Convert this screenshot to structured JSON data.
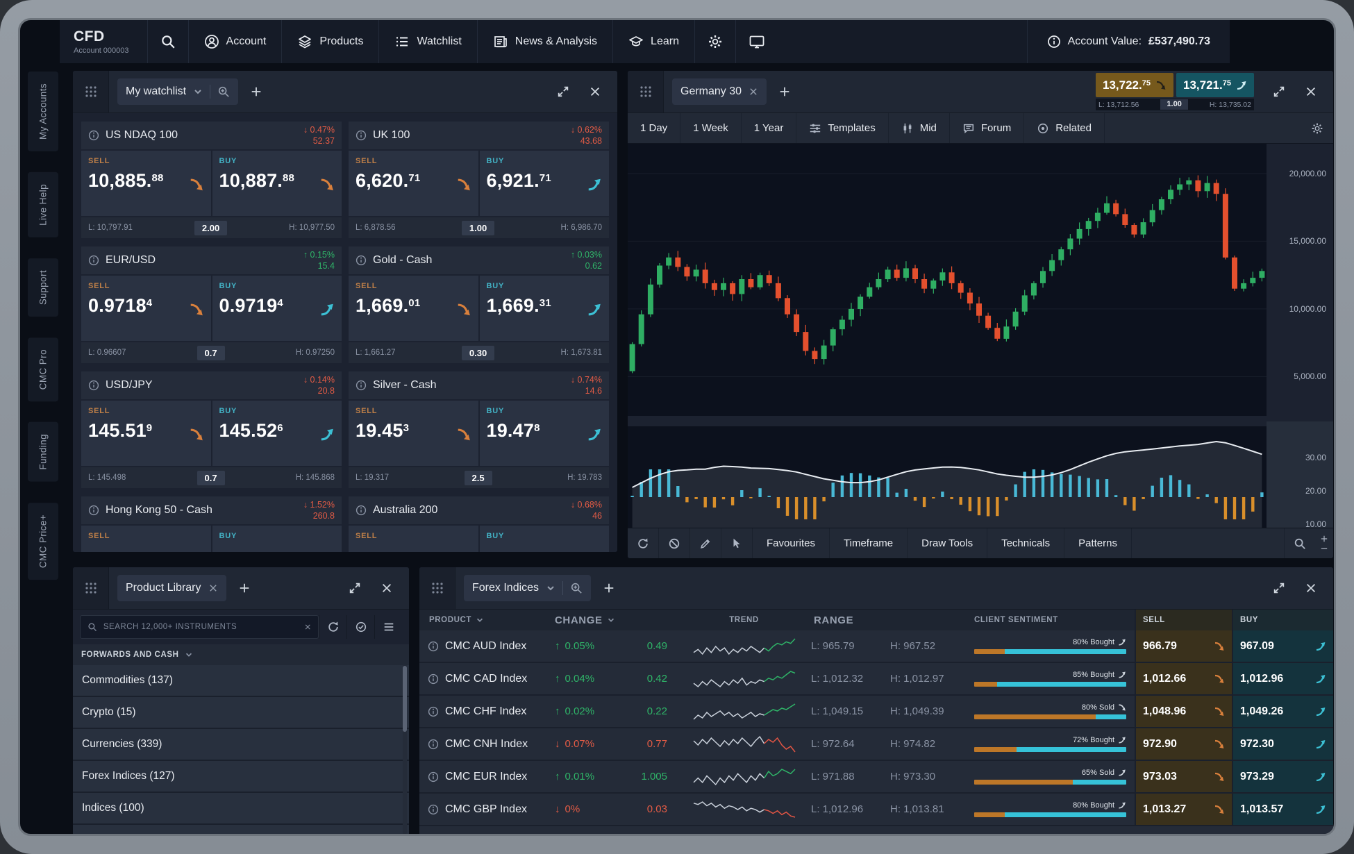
{
  "topbar": {
    "logo": "CFD",
    "account_number": "Account 000003",
    "nav": [
      {
        "label": "Account"
      },
      {
        "label": "Products"
      },
      {
        "label": "Watchlist"
      },
      {
        "label": "News & Analysis"
      },
      {
        "label": "Learn"
      }
    ],
    "account_value_label": "Account Value:",
    "account_value": "£537,490.73"
  },
  "side_rail": [
    "My Accounts",
    "Live Help",
    "Support",
    "CMC Pro",
    "Funding",
    "CMC Price+"
  ],
  "watchlist_panel": {
    "tab_label": "My watchlist",
    "labels": {
      "sell": "SELL",
      "buy": "BUY"
    },
    "instruments": [
      {
        "name": "US NDAQ 100",
        "dir": "down",
        "change_pct": "0.47%",
        "change_pts": "52.37",
        "sell_price": "10,885.",
        "sell_sup": "88",
        "buy_price": "10,887.",
        "buy_sup": "88",
        "sell_tick": "down",
        "buy_tick": "down",
        "low": "L: 10,797.91",
        "spread": "2.00",
        "high": "H: 10,977.50"
      },
      {
        "name": "UK 100",
        "dir": "down",
        "change_pct": "0.62%",
        "change_pts": "43.68",
        "sell_price": "6,620.",
        "sell_sup": "71",
        "buy_price": "6,921.",
        "buy_sup": "71",
        "sell_tick": "down",
        "buy_tick": "up",
        "low": "L: 6,878.56",
        "spread": "1.00",
        "high": "H: 6,986.70"
      },
      {
        "name": "EUR/USD",
        "dir": "up",
        "change_pct": "0.15%",
        "change_pts": "15.4",
        "sell_price": "0.9718",
        "sell_sup": "4",
        "buy_price": "0.9719",
        "buy_sup": "4",
        "sell_tick": "down",
        "buy_tick": "up",
        "low": "L: 0.96607",
        "spread": "0.7",
        "high": "H: 0.97250"
      },
      {
        "name": "Gold - Cash",
        "dir": "up",
        "change_pct": "0.03%",
        "change_pts": "0.62",
        "sell_price": "1,669.",
        "sell_sup": "01",
        "buy_price": "1,669.",
        "buy_sup": "31",
        "sell_tick": "down",
        "buy_tick": "up",
        "low": "L: 1,661.27",
        "spread": "0.30",
        "high": "H: 1,673.81"
      },
      {
        "name": "USD/JPY",
        "dir": "down",
        "change_pct": "0.14%",
        "change_pts": "20.8",
        "sell_price": "145.51",
        "sell_sup": "9",
        "buy_price": "145.52",
        "buy_sup": "6",
        "sell_tick": "down",
        "buy_tick": "up",
        "low": "L: 145.498",
        "spread": "0.7",
        "high": "H: 145.868"
      },
      {
        "name": "Silver - Cash",
        "dir": "down",
        "change_pct": "0.74%",
        "change_pts": "14.6",
        "sell_price": "19.45",
        "sell_sup": "3",
        "buy_price": "19.47",
        "buy_sup": "8",
        "sell_tick": "down",
        "buy_tick": "up",
        "low": "L: 19.317",
        "spread": "2.5",
        "high": "H: 19.783"
      },
      {
        "name": "Hong Kong 50 - Cash",
        "dir": "down",
        "change_pct": "1.52%",
        "change_pts": "260.8",
        "sell_price": "",
        "sell_sup": "",
        "buy_price": "",
        "buy_sup": "",
        "sell_tick": "down",
        "buy_tick": "up",
        "low": "",
        "spread": "",
        "high": ""
      },
      {
        "name": "Australia 200",
        "dir": "down",
        "change_pct": "0.68%",
        "change_pts": "46",
        "sell_price": "",
        "sell_sup": "",
        "buy_price": "",
        "buy_sup": "",
        "sell_tick": "down",
        "buy_tick": "up",
        "low": "",
        "spread": "",
        "high": ""
      }
    ]
  },
  "chart_panel": {
    "tab_label": "Germany 30",
    "sell_box": {
      "price": "13,722.",
      "sup": "75"
    },
    "buy_box": {
      "price": "13,721.",
      "sup": "75"
    },
    "low": "L: 13,712.56",
    "spread": "1.00",
    "high": "H: 13,735.02",
    "toolbar": [
      "1 Day",
      "1 Week",
      "1 Year",
      "Templates",
      "Mid",
      "Forum",
      "Related"
    ],
    "bottom_toolbar": [
      "Favourites",
      "Timeframe",
      "Draw Tools",
      "Technicals",
      "Patterns"
    ]
  },
  "chart_data": {
    "type": "candlestick",
    "title": "Germany 30",
    "y_axis_labels": [
      "20,000.00",
      "15,000.00",
      "10,000.00",
      "5,000.00"
    ],
    "gridline_values": [
      20000,
      15000,
      10000,
      5000
    ],
    "ylim": [
      2100,
      22200
    ],
    "open_first": 5400,
    "closes": [
      7400,
      9600,
      11800,
      13200,
      13800,
      13100,
      12400,
      12900,
      11900,
      11400,
      11900,
      11100,
      12200,
      11600,
      12500,
      11900,
      10800,
      9600,
      8300,
      6900,
      6300,
      7300,
      8500,
      9200,
      10000,
      10900,
      11600,
      12200,
      12900,
      12300,
      13000,
      12200,
      11500,
      12100,
      12700,
      11900,
      11200,
      10400,
      9500,
      8600,
      7800,
      8700,
      9800,
      11000,
      11900,
      12800,
      13600,
      14400,
      15200,
      15900,
      16500,
      17100,
      17800,
      17000,
      16200,
      15500,
      16400,
      17300,
      18100,
      18800,
      19200,
      19500,
      18700,
      19300,
      18500,
      13800,
      11500,
      11900,
      12300,
      12800
    ],
    "sub_axis_labels": [
      "30.00",
      "20.00",
      "10.00"
    ]
  },
  "product_library": {
    "tab_label": "Product Library",
    "search_placeholder": "SEARCH 12,000+ INSTRUMENTS",
    "section_label": "FORWARDS AND CASH",
    "items": [
      "Commodities (137)",
      "Crypto (15)",
      "Currencies (339)",
      "Forex Indices (127)",
      "Indices (100)"
    ]
  },
  "forex_panel": {
    "tab_label": "Forex Indices",
    "columns": [
      "PRODUCT",
      "CHANGE",
      "TREND",
      "RANGE",
      "CLIENT SENTIMENT",
      "SELL",
      "BUY"
    ],
    "rows": [
      {
        "name": "CMC AUD Index",
        "dir": "up",
        "pct": "0.05%",
        "pts": "0.49",
        "low": "L: 965.79",
        "high": "H: 967.52",
        "sentiment_label": "80% Bought",
        "sentiment_dir": "up",
        "cyan_pct": 80,
        "sell": "966.79",
        "buy": "967.09",
        "tail": "up",
        "spark": [
          12,
          14,
          11,
          15,
          12,
          16,
          13,
          15,
          11,
          14,
          12,
          15,
          13,
          16,
          14,
          12,
          15,
          13,
          16,
          18,
          17,
          19,
          18,
          21
        ]
      },
      {
        "name": "CMC CAD Index",
        "dir": "up",
        "pct": "0.04%",
        "pts": "0.42",
        "low": "L: 1,012.32",
        "high": "H: 1,012.97",
        "sentiment_label": "85% Bought",
        "sentiment_dir": "up",
        "cyan_pct": 85,
        "sell": "1,012.66",
        "buy": "1,012.96",
        "tail": "up",
        "spark": [
          13,
          11,
          14,
          12,
          15,
          13,
          11,
          14,
          12,
          15,
          13,
          16,
          12,
          14,
          13,
          15,
          14,
          16,
          15,
          17,
          16,
          18,
          20,
          19
        ]
      },
      {
        "name": "CMC CHF Index",
        "dir": "up",
        "pct": "0.02%",
        "pts": "0.22",
        "low": "L: 1,049.15",
        "high": "H: 1,049.39",
        "sentiment_label": "80% Sold",
        "sentiment_dir": "down",
        "cyan_pct": 20,
        "sell": "1,048.96",
        "buy": "1,049.26",
        "tail": "up",
        "spark": [
          10,
          13,
          11,
          15,
          12,
          14,
          16,
          13,
          15,
          12,
          14,
          11,
          13,
          15,
          12,
          14,
          13,
          15,
          17,
          16,
          18,
          17,
          19,
          21
        ]
      },
      {
        "name": "CMC CNH Index",
        "dir": "down",
        "pct": "0.07%",
        "pts": "0.77",
        "low": "L: 972.64",
        "high": "H: 974.82",
        "sentiment_label": "72% Bought",
        "sentiment_dir": "up",
        "cyan_pct": 72,
        "sell": "972.90",
        "buy": "972.30",
        "tail": "down",
        "spark": [
          16,
          13,
          17,
          14,
          18,
          15,
          12,
          16,
          13,
          17,
          14,
          18,
          15,
          12,
          16,
          19,
          14,
          17,
          15,
          18,
          13,
          10,
          12,
          8
        ]
      },
      {
        "name": "CMC EUR Index",
        "dir": "up",
        "pct": "0.01%",
        "pts": "1.005",
        "low": "L: 971.88",
        "high": "H: 973.30",
        "sentiment_label": "65% Sold",
        "sentiment_dir": "up",
        "cyan_pct": 35,
        "sell": "973.03",
        "buy": "973.29",
        "tail": "up",
        "spark": [
          12,
          14,
          12,
          15,
          13,
          11,
          14,
          12,
          15,
          13,
          16,
          14,
          12,
          15,
          13,
          16,
          14,
          17,
          15,
          16,
          18,
          17,
          16,
          18
        ]
      },
      {
        "name": "CMC GBP Index",
        "dir": "down",
        "pct": "0%",
        "pts": "0.03",
        "low": "L: 1,012.96",
        "high": "H: 1,013.81",
        "sentiment_label": "80% Bought",
        "sentiment_dir": "up",
        "cyan_pct": 80,
        "sell": "1,013.27",
        "buy": "1,013.57",
        "tail": "down",
        "spark": [
          18,
          17,
          19,
          16,
          18,
          15,
          17,
          14,
          16,
          15,
          13,
          15,
          12,
          14,
          13,
          11,
          13,
          12,
          10,
          12,
          9,
          11,
          8,
          7
        ]
      }
    ]
  }
}
